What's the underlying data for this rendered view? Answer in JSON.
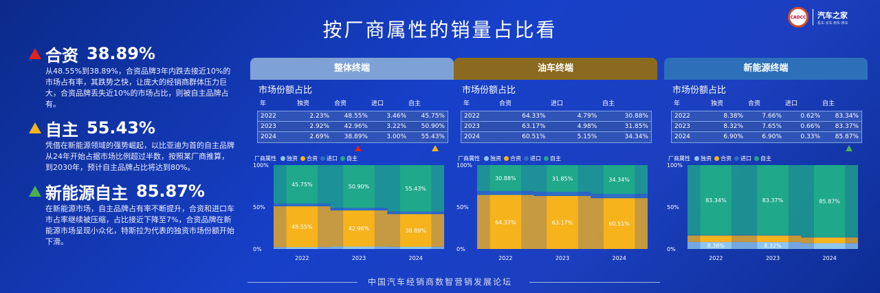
{
  "page_title": "按厂商属性的销量占比看",
  "logo": {
    "main": "汽车之家",
    "sub": "看车·买车·用车·换车",
    "seal": "CADCC"
  },
  "footer": "中国汽车经销商数智营销发展论坛",
  "highlights": [
    {
      "name": "合资",
      "value": "38.89%",
      "color": "#e3231b",
      "desc": "从48.55%到38.89%，合资品牌3年内跌去接近10%的市场占有率，其跌势之快，让庞大的经销商群体压力巨大，合资品牌丢失近10%的市场占比，则被自主品牌占有。"
    },
    {
      "name": "自主",
      "value": "55.43%",
      "color": "#f5b51a",
      "desc": "凭借在新能源领域的强势崛起，以比亚迪为首的自主品牌从24年开始占据市场比例超过半数，按照某厂商推算，到2030年，预计自主品牌占比将达到80%。"
    },
    {
      "name": "新能源自主",
      "value": "85.87%",
      "color": "#4caf50",
      "desc": "在新能源市场，自主品牌占有率不断提升，合资和进口车市占率继续被压缩，占比接近下降至7%，合资品牌在新能源市场呈现小众化，特斯拉为代表的独资市场份额开始下滑。"
    }
  ],
  "colors": {
    "duzi": "#8ec6ee",
    "hezi": "#f6b31c",
    "jinkou": "#2f6fc4",
    "zizhu": "#1fa88a"
  },
  "panels": [
    {
      "header": "整体终端",
      "header_color": "#7fa2d6",
      "subtitle": "市场份额占比",
      "columns": [
        "年",
        "独资",
        "合资",
        "进口",
        "自主"
      ],
      "rows": [
        [
          "2022",
          "2.23%",
          "48.55%",
          "3.46%",
          "45.75%"
        ],
        [
          "2023",
          "2.92%",
          "42.96%",
          "3.22%",
          "50.90%"
        ],
        [
          "2024",
          "2.69%",
          "38.89%",
          "3.00%",
          "55.43%"
        ]
      ],
      "markers": [
        {
          "col": 2,
          "color": "#e3231b"
        },
        {
          "col": 4,
          "color": "#f5b51a"
        }
      ],
      "legend_title": "厂商属性",
      "legend": [
        "独资",
        "合资",
        "进口",
        "自主"
      ],
      "chart_data": {
        "type": "bar",
        "categories": [
          "2022",
          "2023",
          "2024"
        ],
        "ylim": [
          0,
          100
        ],
        "yticks": [
          "0%",
          "50%",
          "100%"
        ],
        "series": [
          {
            "name": "独资",
            "values": [
              2.23,
              2.92,
              2.69
            ]
          },
          {
            "name": "合资",
            "values": [
              48.55,
              42.96,
              38.89
            ]
          },
          {
            "name": "进口",
            "values": [
              3.46,
              3.22,
              3.0
            ]
          },
          {
            "name": "自主",
            "values": [
              45.75,
              50.9,
              55.43
            ]
          }
        ],
        "labels": [
          {
            "series": "合资",
            "text": [
              "48.55%",
              "42.96%",
              "38.89%"
            ]
          },
          {
            "series": "自主",
            "text": [
              "45.75%",
              "50.90%",
              "55.43%"
            ]
          }
        ]
      }
    },
    {
      "header": "油车终端",
      "header_color": "#8a6a1e",
      "subtitle": "市场份额占比",
      "columns": [
        "年",
        "合资",
        "进口",
        "自主"
      ],
      "rows": [
        [
          "2022",
          "64.33%",
          "4.79%",
          "30.88%"
        ],
        [
          "2023",
          "63.17%",
          "4.98%",
          "31.85%"
        ],
        [
          "2024",
          "60.51%",
          "5.15%",
          "34.34%"
        ]
      ],
      "markers": [],
      "legend_title": "厂商属性",
      "legend": [
        "独资",
        "合资",
        "进口",
        "自主"
      ],
      "chart_data": {
        "type": "bar",
        "categories": [
          "2022",
          "2023",
          "2024"
        ],
        "ylim": [
          0,
          100
        ],
        "yticks": [
          "0%",
          "50%",
          "100%"
        ],
        "series": [
          {
            "name": "合资",
            "values": [
              64.33,
              63.17,
              60.51
            ]
          },
          {
            "name": "进口",
            "values": [
              4.79,
              4.98,
              5.15
            ]
          },
          {
            "name": "自主",
            "values": [
              30.88,
              31.85,
              34.34
            ]
          }
        ],
        "labels": [
          {
            "series": "合资",
            "text": [
              "64.33%",
              "63.17%",
              "60.51%"
            ]
          },
          {
            "series": "自主",
            "text": [
              "30.88%",
              "31.85%",
              "34.34%"
            ]
          }
        ]
      }
    },
    {
      "header": "新能源终端",
      "header_color": "#2d70b9",
      "subtitle": "市场份额占比",
      "columns": [
        "年",
        "独资",
        "合资",
        "进口",
        "自主"
      ],
      "rows": [
        [
          "2022",
          "8.38%",
          "7.66%",
          "0.62%",
          "83.34%"
        ],
        [
          "2023",
          "8.32%",
          "7.65%",
          "0.66%",
          "83.37%"
        ],
        [
          "2024",
          "6.90%",
          "6.90%",
          "0.33%",
          "85.87%"
        ]
      ],
      "markers": [
        {
          "col": 4,
          "color": "#4caf50"
        }
      ],
      "legend_title": "厂商属性",
      "legend": [
        "独资",
        "合资",
        "进口",
        "自主"
      ],
      "chart_data": {
        "type": "bar",
        "categories": [
          "2022",
          "2023",
          "2024"
        ],
        "ylim": [
          0,
          100
        ],
        "yticks": [
          "0%",
          "50%",
          "100%"
        ],
        "series": [
          {
            "name": "独资",
            "values": [
              8.38,
              8.32,
              6.9
            ]
          },
          {
            "name": "合资",
            "values": [
              7.66,
              7.65,
              6.9
            ]
          },
          {
            "name": "进口",
            "values": [
              0.62,
              0.66,
              0.33
            ]
          },
          {
            "name": "自主",
            "values": [
              83.34,
              83.37,
              85.87
            ]
          }
        ],
        "labels": [
          {
            "series": "独资",
            "text": [
              "8.38%",
              "8.32%",
              ""
            ]
          },
          {
            "series": "自主",
            "text": [
              "83.34%",
              "83.37%",
              "85.87%"
            ]
          }
        ]
      }
    }
  ]
}
